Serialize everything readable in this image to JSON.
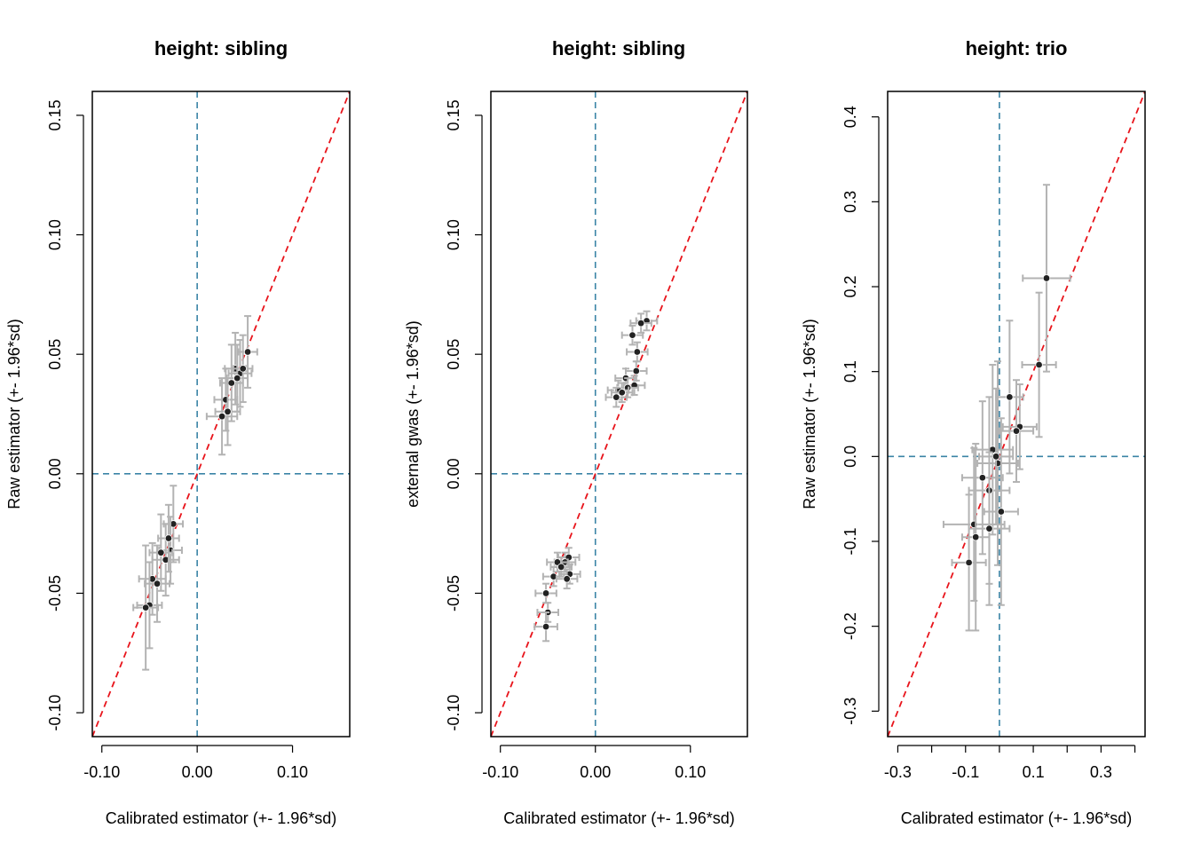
{
  "chart_data": [
    {
      "type": "scatter",
      "title": "height: sibling",
      "xlabel": "Calibrated estimator (+- 1.96*sd)",
      "ylabel": "Raw estimator (+- 1.96*sd)",
      "xlim": [
        -0.11,
        0.16
      ],
      "ylim": [
        -0.11,
        0.16
      ],
      "xticks": [
        "-0.10",
        "0.00",
        "0.10"
      ],
      "xtick_values": [
        -0.1,
        0.0,
        0.1
      ],
      "yticks": [
        "-0.10",
        "-0.05",
        "0.00",
        "0.05",
        "0.10",
        "0.15"
      ],
      "ytick_values": [
        -0.1,
        -0.05,
        0.0,
        0.05,
        0.1,
        0.15
      ],
      "reference_lines": {
        "vertical_x": 0,
        "horizontal_y": 0,
        "diagonal": "y = x"
      },
      "colors": {
        "points": "#222222",
        "error_bars": "#b3b3b3",
        "diagonal": "#e8141b",
        "reference": "#3a84a6"
      },
      "points": [
        {
          "x": 0.053,
          "y": 0.051,
          "xerr": 0.01,
          "yerr": 0.015
        },
        {
          "x": 0.045,
          "y": 0.042,
          "xerr": 0.012,
          "yerr": 0.014
        },
        {
          "x": 0.04,
          "y": 0.044,
          "xerr": 0.011,
          "yerr": 0.015
        },
        {
          "x": 0.036,
          "y": 0.038,
          "xerr": 0.012,
          "yerr": 0.016
        },
        {
          "x": 0.042,
          "y": 0.04,
          "xerr": 0.011,
          "yerr": 0.014
        },
        {
          "x": 0.03,
          "y": 0.031,
          "xerr": 0.012,
          "yerr": 0.013
        },
        {
          "x": 0.026,
          "y": 0.024,
          "xerr": 0.016,
          "yerr": 0.016
        },
        {
          "x": 0.032,
          "y": 0.026,
          "xerr": 0.013,
          "yerr": 0.014
        },
        {
          "x": 0.048,
          "y": 0.044,
          "xerr": 0.01,
          "yerr": 0.014
        },
        {
          "x": -0.025,
          "y": -0.021,
          "xerr": 0.01,
          "yerr": 0.016
        },
        {
          "x": -0.028,
          "y": -0.032,
          "xerr": 0.012,
          "yerr": 0.014
        },
        {
          "x": -0.033,
          "y": -0.036,
          "xerr": 0.014,
          "yerr": 0.015
        },
        {
          "x": -0.038,
          "y": -0.033,
          "xerr": 0.012,
          "yerr": 0.016
        },
        {
          "x": -0.042,
          "y": -0.046,
          "xerr": 0.013,
          "yerr": 0.016
        },
        {
          "x": -0.047,
          "y": -0.044,
          "xerr": 0.014,
          "yerr": 0.015
        },
        {
          "x": -0.05,
          "y": -0.055,
          "xerr": 0.013,
          "yerr": 0.018
        },
        {
          "x": -0.054,
          "y": -0.056,
          "xerr": 0.013,
          "yerr": 0.026
        },
        {
          "x": -0.03,
          "y": -0.027,
          "xerr": 0.011,
          "yerr": 0.014
        }
      ]
    },
    {
      "type": "scatter",
      "title": "height: sibling",
      "xlabel": "Calibrated estimator (+- 1.96*sd)",
      "ylabel": "external gwas (+- 1.96*sd)",
      "xlim": [
        -0.11,
        0.16
      ],
      "ylim": [
        -0.11,
        0.16
      ],
      "xticks": [
        "-0.10",
        "0.00",
        "0.10"
      ],
      "xtick_values": [
        -0.1,
        0.0,
        0.1
      ],
      "yticks": [
        "-0.10",
        "-0.05",
        "0.00",
        "0.05",
        "0.10",
        "0.15"
      ],
      "ytick_values": [
        -0.1,
        -0.05,
        0.0,
        0.05,
        0.1,
        0.15
      ],
      "reference_lines": {
        "vertical_x": 0,
        "horizontal_y": 0,
        "diagonal": "y = x"
      },
      "colors": {
        "points": "#222222",
        "error_bars": "#b3b3b3",
        "diagonal": "#e8141b",
        "reference": "#3a84a6"
      },
      "points": [
        {
          "x": 0.054,
          "y": 0.064,
          "xerr": 0.011,
          "yerr": 0.004
        },
        {
          "x": 0.048,
          "y": 0.063,
          "xerr": 0.011,
          "yerr": 0.004
        },
        {
          "x": 0.039,
          "y": 0.058,
          "xerr": 0.011,
          "yerr": 0.004
        },
        {
          "x": 0.044,
          "y": 0.051,
          "xerr": 0.011,
          "yerr": 0.004
        },
        {
          "x": 0.043,
          "y": 0.043,
          "xerr": 0.011,
          "yerr": 0.004
        },
        {
          "x": 0.032,
          "y": 0.04,
          "xerr": 0.011,
          "yerr": 0.004
        },
        {
          "x": 0.041,
          "y": 0.037,
          "xerr": 0.011,
          "yerr": 0.004
        },
        {
          "x": 0.034,
          "y": 0.036,
          "xerr": 0.011,
          "yerr": 0.004
        },
        {
          "x": 0.024,
          "y": 0.035,
          "xerr": 0.011,
          "yerr": 0.004
        },
        {
          "x": 0.028,
          "y": 0.034,
          "xerr": 0.011,
          "yerr": 0.004
        },
        {
          "x": 0.022,
          "y": 0.032,
          "xerr": 0.011,
          "yerr": 0.004
        },
        {
          "x": -0.028,
          "y": -0.035,
          "xerr": 0.011,
          "yerr": 0.004
        },
        {
          "x": -0.032,
          "y": -0.037,
          "xerr": 0.011,
          "yerr": 0.004
        },
        {
          "x": -0.04,
          "y": -0.037,
          "xerr": 0.011,
          "yerr": 0.004
        },
        {
          "x": -0.036,
          "y": -0.039,
          "xerr": 0.011,
          "yerr": 0.004
        },
        {
          "x": -0.027,
          "y": -0.042,
          "xerr": 0.011,
          "yerr": 0.004
        },
        {
          "x": -0.044,
          "y": -0.043,
          "xerr": 0.011,
          "yerr": 0.004
        },
        {
          "x": -0.03,
          "y": -0.044,
          "xerr": 0.011,
          "yerr": 0.004
        },
        {
          "x": -0.052,
          "y": -0.05,
          "xerr": 0.011,
          "yerr": 0.004
        },
        {
          "x": -0.05,
          "y": -0.058,
          "xerr": 0.011,
          "yerr": 0.004
        },
        {
          "x": -0.052,
          "y": -0.064,
          "xerr": 0.012,
          "yerr": 0.006
        }
      ]
    },
    {
      "type": "scatter",
      "title": "height: trio",
      "xlabel": "Calibrated estimator (+- 1.96*sd)",
      "ylabel": "Raw estimator (+- 1.96*sd)",
      "xlim": [
        -0.33,
        0.43
      ],
      "ylim": [
        -0.33,
        0.43
      ],
      "xticks": [
        "-0.3",
        "",
        "-0.1",
        "",
        "0.1",
        "",
        "0.3",
        ""
      ],
      "xtick_values": [
        -0.3,
        -0.2,
        -0.1,
        0.0,
        0.1,
        0.2,
        0.3,
        0.4
      ],
      "yticks": [
        "-0.3",
        "-0.2",
        "-0.1",
        "0.0",
        "0.1",
        "0.2",
        "0.3",
        "0.4"
      ],
      "ytick_values": [
        -0.3,
        -0.2,
        -0.1,
        0.0,
        0.1,
        0.2,
        0.3,
        0.4
      ],
      "reference_lines": {
        "vertical_x": 0,
        "horizontal_y": 0,
        "diagonal": "y = x"
      },
      "colors": {
        "points": "#222222",
        "error_bars": "#b3b3b3",
        "diagonal": "#e8141b",
        "reference": "#3a84a6"
      },
      "points": [
        {
          "x": 0.139,
          "y": 0.21,
          "xerr": 0.07,
          "yerr": 0.11
        },
        {
          "x": 0.117,
          "y": 0.108,
          "xerr": 0.05,
          "yerr": 0.085
        },
        {
          "x": 0.03,
          "y": 0.07,
          "xerr": 0.04,
          "yerr": 0.09
        },
        {
          "x": 0.06,
          "y": 0.035,
          "xerr": 0.05,
          "yerr": 0.05
        },
        {
          "x": 0.05,
          "y": 0.03,
          "xerr": 0.05,
          "yerr": 0.06
        },
        {
          "x": -0.02,
          "y": 0.008,
          "xerr": 0.06,
          "yerr": 0.1
        },
        {
          "x": -0.005,
          "y": -0.008,
          "xerr": 0.06,
          "yerr": 0.12
        },
        {
          "x": -0.05,
          "y": -0.025,
          "xerr": 0.06,
          "yerr": 0.09
        },
        {
          "x": -0.03,
          "y": -0.04,
          "xerr": 0.06,
          "yerr": 0.11
        },
        {
          "x": 0.005,
          "y": -0.065,
          "xerr": 0.05,
          "yerr": 0.11
        },
        {
          "x": -0.03,
          "y": -0.085,
          "xerr": 0.06,
          "yerr": 0.09
        },
        {
          "x": -0.075,
          "y": -0.08,
          "xerr": 0.09,
          "yerr": 0.09
        },
        {
          "x": -0.09,
          "y": -0.125,
          "xerr": 0.05,
          "yerr": 0.08
        },
        {
          "x": -0.07,
          "y": -0.095,
          "xerr": 0.04,
          "yerr": 0.11
        },
        {
          "x": -0.01,
          "y": 0.0,
          "xerr": 0.05,
          "yerr": 0.08
        }
      ]
    }
  ]
}
